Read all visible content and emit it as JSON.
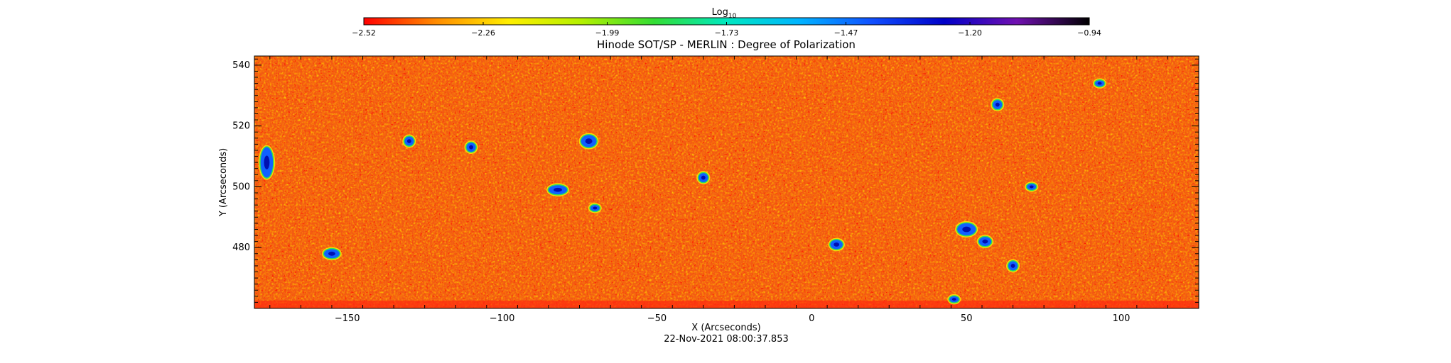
{
  "chart_data": {
    "type": "heatmap",
    "title": "Hinode SOT/SP - MERLIN : Degree of Polarization",
    "xlabel": "X (Arcseconds)",
    "ylabel": "Y (Arcseconds)",
    "timestamp": "22-Nov-2021 08:00:37.853",
    "xlim": [
      -180,
      125
    ],
    "ylim": [
      460,
      543
    ],
    "x_ticks": [
      -150,
      -100,
      -50,
      0,
      50,
      100
    ],
    "x_tick_labels": [
      "−150",
      "−100",
      "−50",
      "0",
      "50",
      "100"
    ],
    "y_ticks": [
      480,
      500,
      520,
      540
    ],
    "y_tick_labels": [
      "480",
      "500",
      "520",
      "540"
    ],
    "colorbar": {
      "label": "Log",
      "label_sub": "10",
      "range": [
        -2.52,
        -0.94
      ],
      "scale": "log10",
      "ticks": [
        -2.52,
        -2.26,
        -1.99,
        -1.73,
        -1.47,
        -1.2,
        -0.94
      ],
      "tick_labels": [
        "−2.52",
        "−2.26",
        "−1.99",
        "−1.73",
        "−1.47",
        "−1.20",
        "−0.94"
      ],
      "stops": [
        "#ff0000",
        "#ff8c00",
        "#ffee00",
        "#b4f000",
        "#33dd33",
        "#00e8c0",
        "#00b4ff",
        "#1050ff",
        "#0000c8",
        "#7010b0",
        "#000000"
      ]
    },
    "blob_features": [
      {
        "x": -176,
        "y": 508,
        "w": 4,
        "h": 10
      },
      {
        "x": -155,
        "y": 478,
        "w": 5,
        "h": 3
      },
      {
        "x": -130,
        "y": 515,
        "w": 3,
        "h": 3
      },
      {
        "x": -110,
        "y": 513,
        "w": 3,
        "h": 3
      },
      {
        "x": -72,
        "y": 515,
        "w": 5,
        "h": 4
      },
      {
        "x": -82,
        "y": 499,
        "w": 6,
        "h": 3
      },
      {
        "x": -70,
        "y": 493,
        "w": 3,
        "h": 2
      },
      {
        "x": -35,
        "y": 503,
        "w": 3,
        "h": 3
      },
      {
        "x": 8,
        "y": 481,
        "w": 4,
        "h": 3
      },
      {
        "x": 50,
        "y": 486,
        "w": 6,
        "h": 4
      },
      {
        "x": 56,
        "y": 482,
        "w": 4,
        "h": 3
      },
      {
        "x": 65,
        "y": 474,
        "w": 3,
        "h": 3
      },
      {
        "x": 46,
        "y": 463,
        "w": 3,
        "h": 2
      },
      {
        "x": 60,
        "y": 527,
        "w": 3,
        "h": 3
      },
      {
        "x": 71,
        "y": 500,
        "w": 3,
        "h": 2
      },
      {
        "x": 93,
        "y": 534,
        "w": 3,
        "h": 2
      }
    ]
  }
}
